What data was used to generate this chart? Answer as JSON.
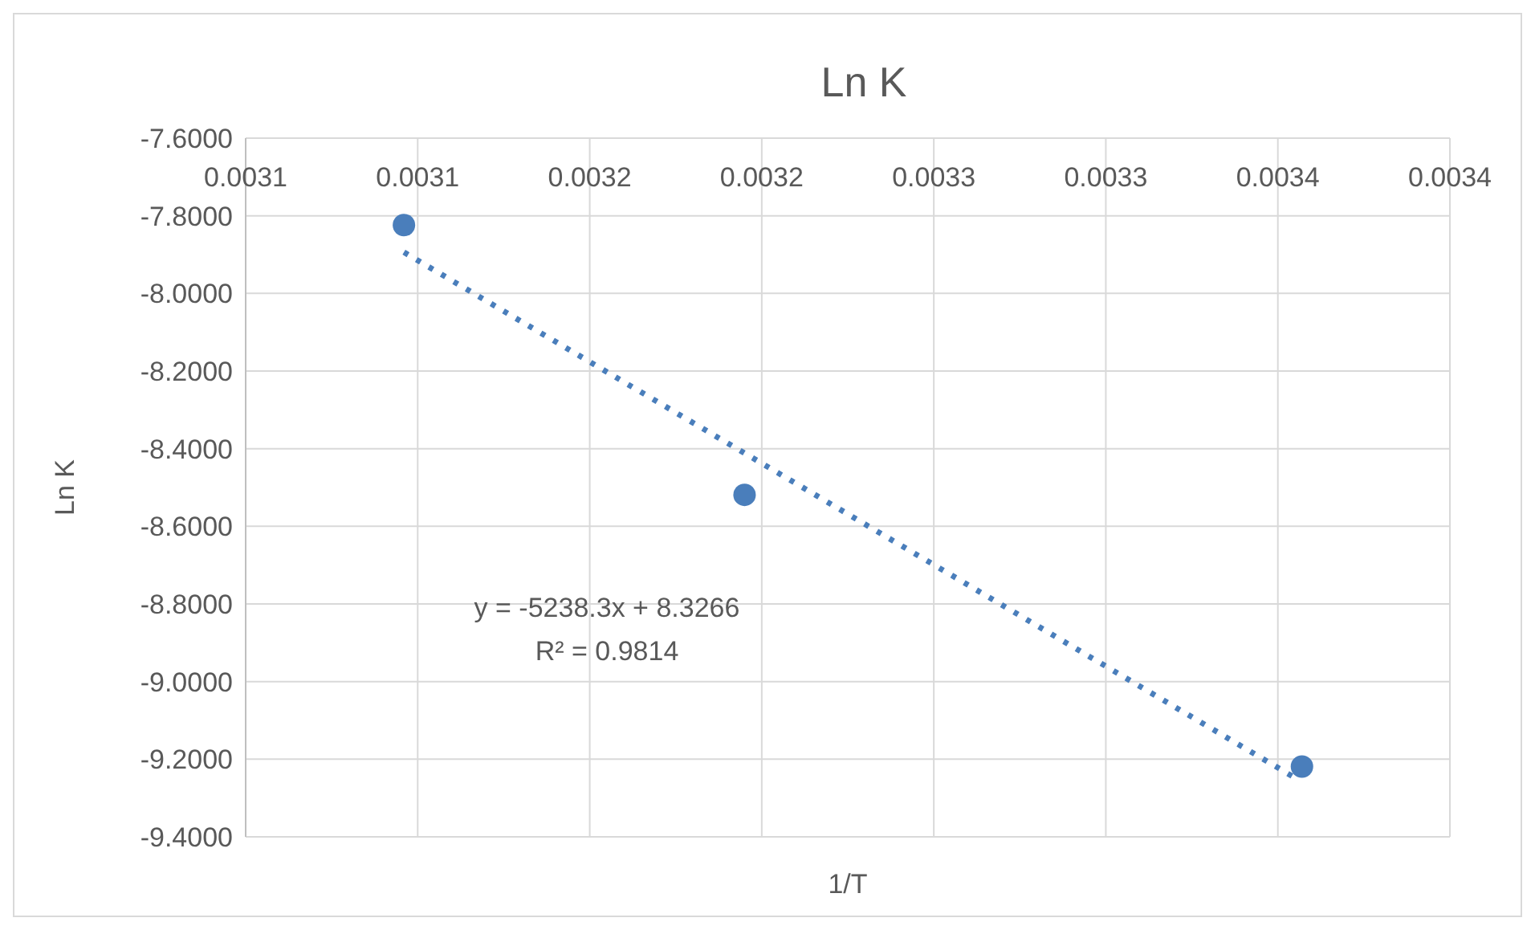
{
  "chart_data": {
    "type": "scatter",
    "title": "Ln K",
    "xlabel": "1/T",
    "ylabel": "Ln K",
    "xlim": [
      0.00305,
      0.0034
    ],
    "ylim": [
      -9.4,
      -7.6
    ],
    "xticks": [
      {
        "value": 0.00305,
        "label": "0.0031"
      },
      {
        "value": 0.0031,
        "label": "0.0031"
      },
      {
        "value": 0.00315,
        "label": "0.0032"
      },
      {
        "value": 0.0032,
        "label": "0.0032"
      },
      {
        "value": 0.00325,
        "label": "0.0033"
      },
      {
        "value": 0.0033,
        "label": "0.0033"
      },
      {
        "value": 0.00335,
        "label": "0.0034"
      },
      {
        "value": 0.0034,
        "label": "0.0034"
      }
    ],
    "yticks": [
      {
        "value": -7.6,
        "label": "-7.6000"
      },
      {
        "value": -7.8,
        "label": "-7.8000"
      },
      {
        "value": -8,
        "label": "-8.0000"
      },
      {
        "value": -8.2,
        "label": "-8.2000"
      },
      {
        "value": -8.4,
        "label": "-8.4000"
      },
      {
        "value": -8.6,
        "label": "-8.6000"
      },
      {
        "value": -8.8,
        "label": "-8.8000"
      },
      {
        "value": -9,
        "label": "-9.0000"
      },
      {
        "value": -9.2,
        "label": "-9.2000"
      },
      {
        "value": -9.4,
        "label": "-9.4000"
      }
    ],
    "grid": true,
    "marker": "circle",
    "series": [
      {
        "color": "#4a7ebb",
        "x": [
          0.003096,
          0.003195,
          0.003357
        ],
        "values": [
          -7.824,
          -8.519,
          -9.219
        ]
      },
      {
        "type": "line",
        "color": "#4a7ebb",
        "line_style": "dotted",
        "marker": "none",
        "x": [
          0.003096,
          0.003355
        ],
        "values": [
          -7.894,
          -9.248
        ]
      }
    ],
    "annotations": [
      "y = -5238.3x + 8.3266",
      "R² = 0.9814"
    ]
  }
}
